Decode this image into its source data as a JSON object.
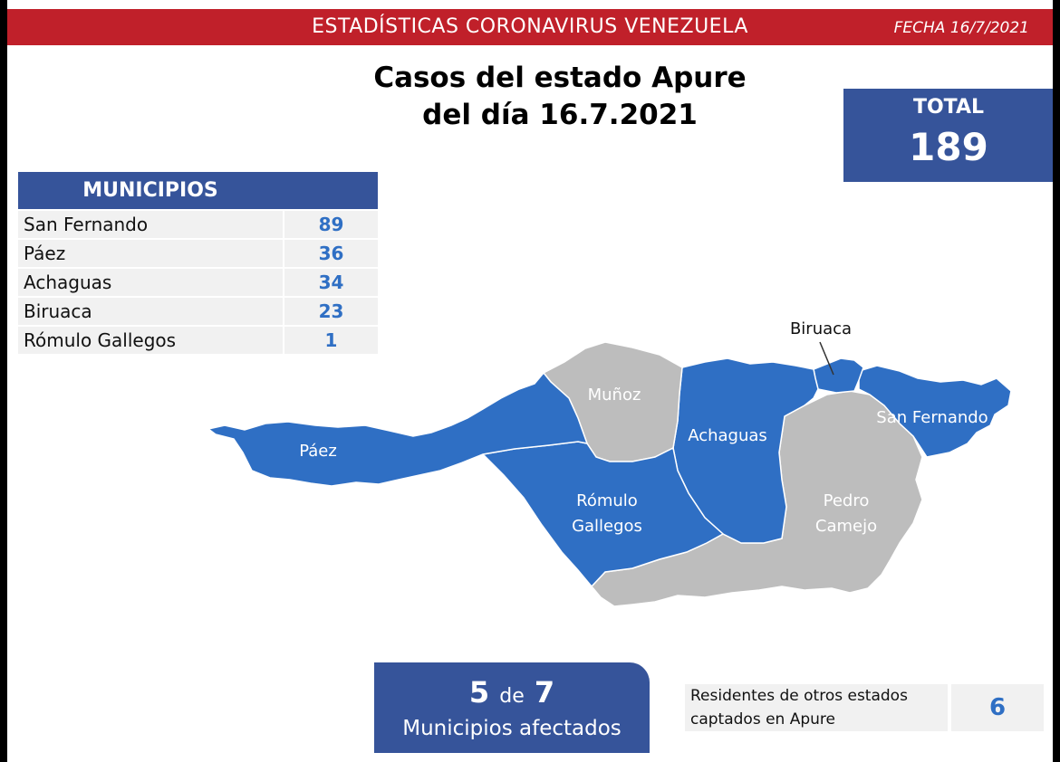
{
  "header": {
    "title": "ESTADÍSTICAS CORONAVIRUS VENEZUELA",
    "fecha": "FECHA 16/7/2021"
  },
  "main_title": {
    "line1": "Casos del estado Apure",
    "line2": "del día 16.7.2021"
  },
  "total": {
    "label": "TOTAL",
    "value": "189"
  },
  "municipios": {
    "header": "MUNICIPIOS",
    "rows": [
      {
        "name": "San Fernando",
        "cases": "89"
      },
      {
        "name": "Páez",
        "cases": "36"
      },
      {
        "name": "Achaguas",
        "cases": "34"
      },
      {
        "name": "Biruaca",
        "cases": "23"
      },
      {
        "name": "Rómulo Gallegos",
        "cases": "1"
      }
    ]
  },
  "map": {
    "affected_color": "#2f6fc4",
    "unaffected_color": "#bdbdbd",
    "regions": {
      "paez": {
        "label": "Páez",
        "affected": true
      },
      "munoz": {
        "label": "Muñoz",
        "affected": false
      },
      "achaguas": {
        "label": "Achaguas",
        "affected": true
      },
      "biruaca": {
        "label": "Biruaca",
        "affected": true
      },
      "san_fernando": {
        "label": "San Fernando",
        "affected": true
      },
      "romulo_gallegos": {
        "label1": "Rómulo",
        "label2": "Gallegos",
        "affected": true
      },
      "pedro_camejo": {
        "label1": "Pedro",
        "label2": "Camejo",
        "affected": false
      }
    }
  },
  "afectados": {
    "count": "5",
    "de": "de",
    "total": "7",
    "label": "Municipios afectados"
  },
  "residentes": {
    "label_line1": "Residentes de otros estados",
    "label_line2": "captados en Apure",
    "value": "6"
  },
  "colors": {
    "header_red": "#c0202a",
    "brand_blue": "#36549a",
    "value_blue": "#2f6fc4",
    "row_grey": "#f1f1f1"
  }
}
